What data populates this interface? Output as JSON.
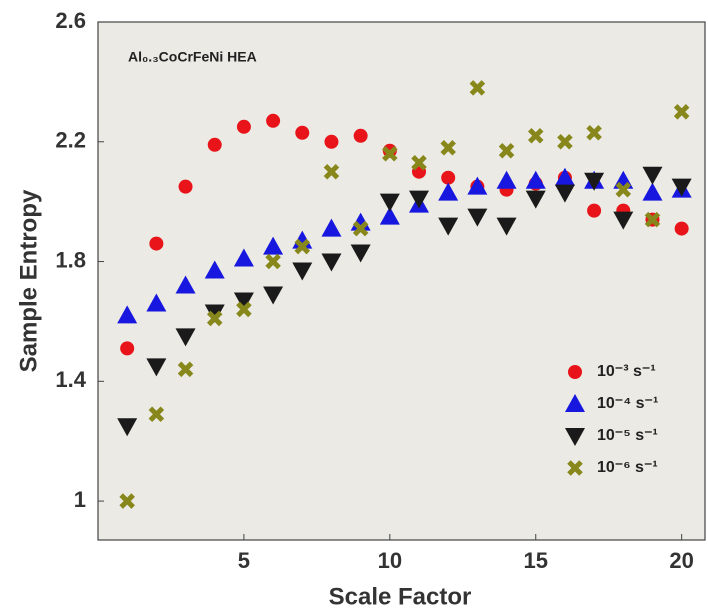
{
  "chart_data": {
    "type": "scatter",
    "annotation": "Al₀.₃CoCrFeNi HEA",
    "x_label": "Scale Factor",
    "y_label": "Sample Entropy",
    "x": [
      1,
      2,
      3,
      4,
      5,
      6,
      7,
      8,
      9,
      10,
      11,
      12,
      13,
      14,
      15,
      16,
      17,
      18,
      19,
      20
    ],
    "series": [
      {
        "name": "10⁻³ s⁻¹",
        "color": "#e8141a",
        "marker": "circle",
        "values": [
          1.51,
          1.86,
          2.05,
          2.19,
          2.25,
          2.27,
          2.23,
          2.2,
          2.22,
          2.17,
          2.1,
          2.08,
          2.05,
          2.04,
          2.06,
          2.08,
          1.97,
          1.97,
          1.94,
          1.91
        ]
      },
      {
        "name": "10⁻⁴ s⁻¹",
        "color": "#1717e0",
        "marker": "triangle-up",
        "values": [
          1.62,
          1.66,
          1.72,
          1.77,
          1.81,
          1.85,
          1.87,
          1.91,
          1.93,
          1.95,
          1.99,
          2.03,
          2.05,
          2.07,
          2.07,
          2.08,
          2.07,
          2.07,
          2.03,
          2.04
        ]
      },
      {
        "name": "10⁻⁵ s⁻¹",
        "color": "#1a1a1a",
        "marker": "triangle-down",
        "values": [
          1.25,
          1.45,
          1.55,
          1.63,
          1.67,
          1.69,
          1.77,
          1.8,
          1.83,
          2.0,
          2.01,
          1.92,
          1.95,
          1.92,
          2.01,
          2.03,
          2.07,
          1.94,
          2.09,
          2.05
        ]
      },
      {
        "name": "10⁻⁶ s⁻¹",
        "color": "#87871c",
        "marker": "x",
        "values": [
          1.0,
          1.29,
          1.44,
          1.61,
          1.64,
          1.8,
          1.85,
          2.1,
          1.91,
          2.16,
          2.13,
          2.18,
          2.38,
          2.17,
          2.22,
          2.2,
          2.23,
          2.04,
          1.94,
          2.3
        ]
      }
    ],
    "xlim": [
      0,
      20.8
    ],
    "ylim": [
      0.87,
      2.6
    ],
    "xticks": [
      5,
      10,
      15,
      20
    ],
    "yticks": [
      1,
      1.4,
      1.8,
      2.2,
      2.6
    ],
    "legend": "lower right",
    "background": "#ebeae4"
  }
}
